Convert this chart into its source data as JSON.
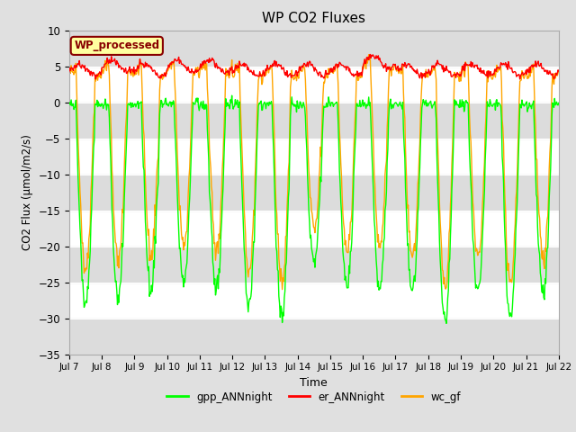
{
  "title": "WP CO2 Fluxes",
  "xlabel": "Time",
  "ylabel": "CO2 Flux (μmol/m2/s)",
  "ylim": [
    -35,
    10
  ],
  "yticks": [
    -35,
    -30,
    -25,
    -20,
    -15,
    -10,
    -5,
    0,
    5,
    10
  ],
  "start_day": 7,
  "end_day": 22,
  "n_days": 15,
  "points_per_day": 48,
  "gpp_color": "#00FF00",
  "er_color": "#FF0000",
  "wc_color": "#FFA500",
  "annotation_text": "WP_processed",
  "annotation_bg": "#FFFFA0",
  "annotation_fg": "#880000",
  "legend_labels": [
    "gpp_ANNnight",
    "er_ANNnight",
    "wc_gf"
  ],
  "background_color": "#E0E0E0",
  "plot_bg": "#FFFFFF",
  "band_color": "#DCDCDC",
  "line_width": 1.0,
  "day_peaks_gpp": [
    -28,
    -27,
    -26,
    -25,
    -26,
    -28,
    -30,
    -22,
    -26,
    -26,
    -27,
    -31,
    -26,
    -30,
    -27
  ],
  "day_peaks_er": [
    4.5,
    5.0,
    4.5,
    5.0,
    5.0,
    4.5,
    4.5,
    4.5,
    4.5,
    5.5,
    4.5,
    4.5,
    4.5,
    4.5,
    4.5
  ]
}
